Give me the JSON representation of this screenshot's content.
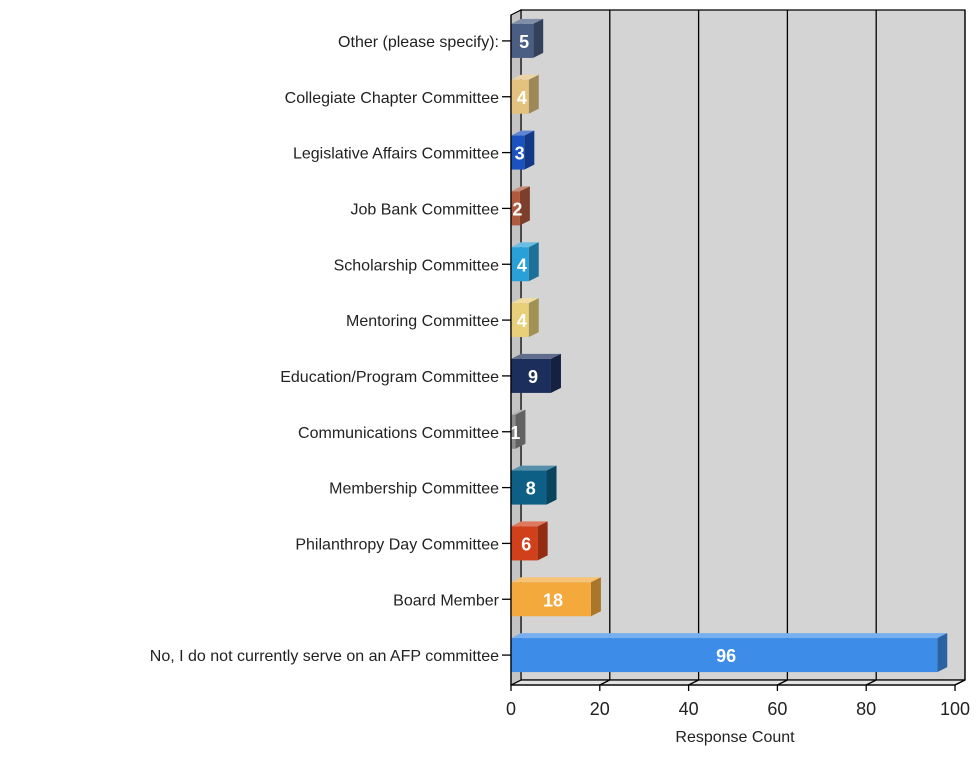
{
  "chart_data": {
    "type": "bar",
    "orientation": "horizontal",
    "title": "",
    "xlabel": "Response Count",
    "ylabel": "",
    "xlim": [
      0,
      100
    ],
    "x_ticks": [
      "0",
      "20",
      "40",
      "60",
      "80",
      "100"
    ],
    "grid": true,
    "legend": "none",
    "categories": [
      "Other (please specify):",
      "Collegiate Chapter Committee",
      "Legislative Affairs Committee",
      "Job Bank Committee",
      "Scholarship Committee",
      "Mentoring Committee",
      "Education/Program Committee",
      "Communications Committee",
      "Membership Committee",
      "Philanthropy Day Committee",
      "Board Member",
      "No, I do not currently serve on an AFP committee"
    ],
    "values": [
      5,
      4,
      3,
      2,
      4,
      4,
      9,
      1,
      8,
      6,
      18,
      96
    ],
    "value_labels": [
      "5",
      "4",
      "3",
      "2",
      "4",
      "4",
      "9",
      "1",
      "8",
      "6",
      "18",
      "96"
    ],
    "colors": [
      "#4a5d82",
      "#e2c27e",
      "#1a52c0",
      "#b05a3e",
      "#2aa0d8",
      "#e8cf7a",
      "#1c2f5c",
      "#8c8c8c",
      "#0e5f86",
      "#d0401a",
      "#f3a93c",
      "#3d8ce8"
    ]
  }
}
